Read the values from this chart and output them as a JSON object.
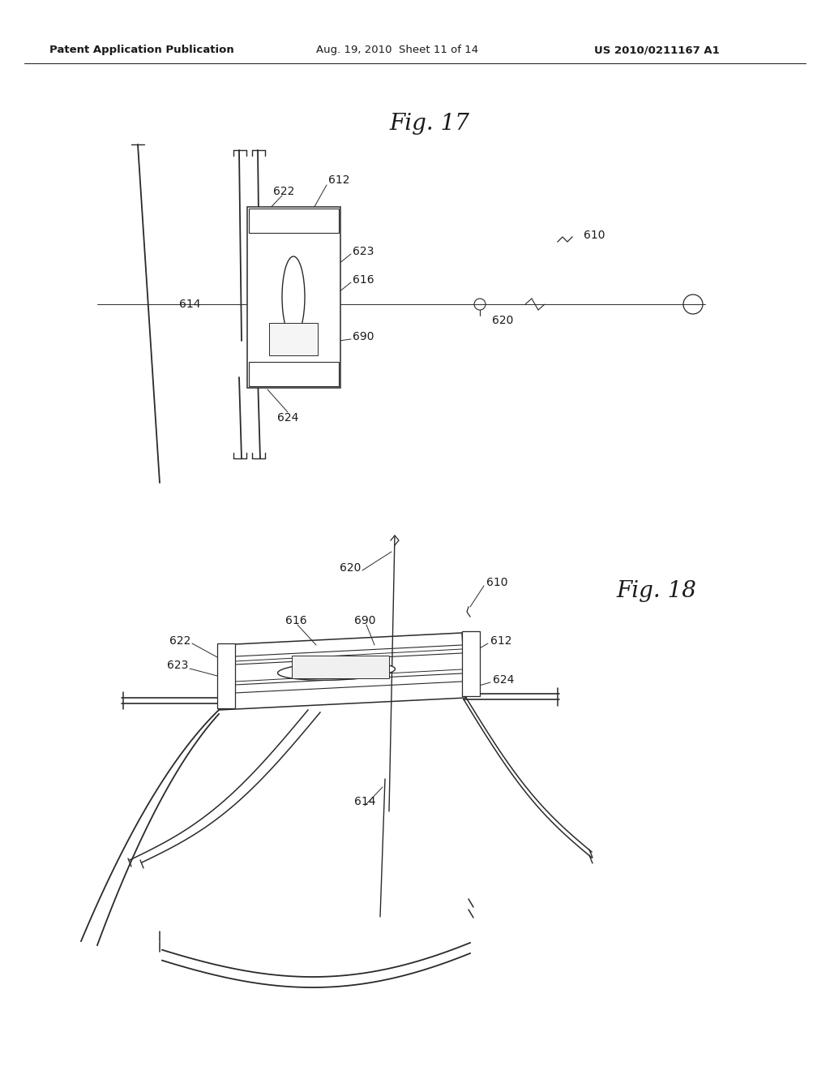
{
  "bg_color": "#ffffff",
  "header_text": "Patent Application Publication",
  "header_date": "Aug. 19, 2010  Sheet 11 of 14",
  "header_patent": "US 2010/0211167 A1",
  "fig17_title": "Fig. 17",
  "fig18_title": "Fig. 18",
  "text_color": "#1a1a1a",
  "line_color": "#2a2a2a"
}
